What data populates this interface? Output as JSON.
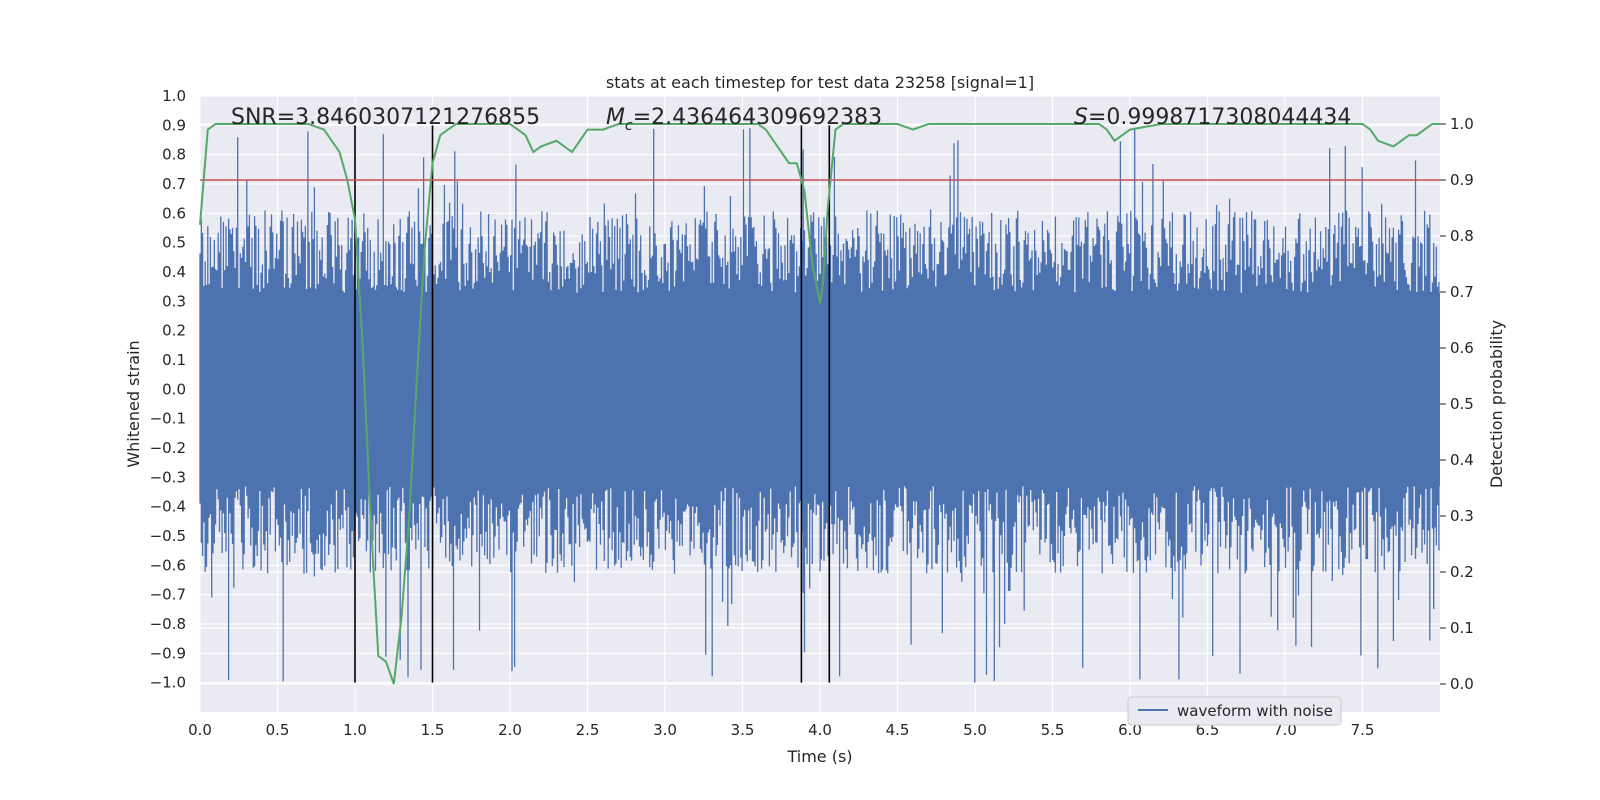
{
  "chart_data": {
    "type": "line",
    "title": "stats at each timestep for test data 23258 [signal=1]",
    "xlabel": "Time (s)",
    "ylabel": "Whitened strain",
    "y2label": "Detection probability",
    "xlim": [
      0.0,
      8.0
    ],
    "ylim": [
      -1.1,
      1.0
    ],
    "y2lim": [
      -0.05,
      1.05
    ],
    "x_ticks": [
      "0.0",
      "0.5",
      "1.0",
      "1.5",
      "2.0",
      "2.5",
      "3.0",
      "3.5",
      "4.0",
      "4.5",
      "5.0",
      "5.5",
      "6.0",
      "6.5",
      "7.0",
      "7.5"
    ],
    "y_ticks": [
      "1.0",
      "0.9",
      "0.8",
      "0.7",
      "0.6",
      "0.5",
      "0.4",
      "0.3",
      "0.2",
      "0.1",
      "0.0",
      "−0.1",
      "−0.2",
      "−0.3",
      "−0.4",
      "−0.5",
      "−0.6",
      "−0.7",
      "−0.8",
      "−0.9",
      "−1.0"
    ],
    "y2_ticks": [
      "1.0",
      "0.9",
      "0.8",
      "0.7",
      "0.6",
      "0.5",
      "0.4",
      "0.3",
      "0.2",
      "0.1",
      "0.0"
    ],
    "grid": true,
    "legend_position": "lower-right",
    "annotations": {
      "snr": "SNR=3.8460307121276855",
      "mc_symbol": "M",
      "mc_sub": "c",
      "mc_value": "=2.436464309692383",
      "s_symbol": "S",
      "s_value": "=0.9998717308044434"
    },
    "vertical_lines_x": [
      1.0,
      1.5,
      3.88,
      4.06
    ],
    "threshold_y2": 0.9,
    "series": [
      {
        "name": "waveform with noise",
        "color": "#4c72b0",
        "description_stats": {
          "typical_envelope": 0.33,
          "max_peak": 0.9,
          "min_peak": -1.0
        }
      },
      {
        "color": "#55a868",
        "axis": "y2",
        "x": [
          0.0,
          0.05,
          0.1,
          0.15,
          0.2,
          0.3,
          0.4,
          0.5,
          0.6,
          0.7,
          0.8,
          0.85,
          0.9,
          0.95,
          1.0,
          1.05,
          1.1,
          1.15,
          1.2,
          1.25,
          1.3,
          1.35,
          1.4,
          1.45,
          1.5,
          1.55,
          1.6,
          1.65,
          1.7,
          1.8,
          1.9,
          2.0,
          2.05,
          2.1,
          2.15,
          2.2,
          2.3,
          2.35,
          2.4,
          2.45,
          2.5,
          2.6,
          2.7,
          2.8,
          3.0,
          3.2,
          3.4,
          3.5,
          3.6,
          3.65,
          3.7,
          3.75,
          3.8,
          3.85,
          3.9,
          3.95,
          4.0,
          4.02,
          4.05,
          4.1,
          4.15,
          4.2,
          4.3,
          4.4,
          4.5,
          4.6,
          4.7,
          4.8,
          5.0,
          5.2,
          5.4,
          5.6,
          5.7,
          5.8,
          5.85,
          5.9,
          6.0,
          6.2,
          6.4,
          6.6,
          6.8,
          7.0,
          7.2,
          7.4,
          7.5,
          7.55,
          7.6,
          7.7,
          7.75,
          7.8,
          7.85,
          7.9,
          7.95,
          8.0
        ],
        "values": [
          0.82,
          0.99,
          1.0,
          1.0,
          1.0,
          1.0,
          1.0,
          1.0,
          1.0,
          1.0,
          0.99,
          0.97,
          0.95,
          0.9,
          0.83,
          0.6,
          0.3,
          0.05,
          0.04,
          0.0,
          0.12,
          0.3,
          0.55,
          0.78,
          0.93,
          0.98,
          0.99,
          1.0,
          1.0,
          1.0,
          1.0,
          1.0,
          0.99,
          0.98,
          0.95,
          0.96,
          0.97,
          0.96,
          0.95,
          0.97,
          0.99,
          0.99,
          1.0,
          1.0,
          1.0,
          1.0,
          1.0,
          1.0,
          1.0,
          0.99,
          0.97,
          0.95,
          0.93,
          0.93,
          0.88,
          0.75,
          0.68,
          0.72,
          0.85,
          0.99,
          1.0,
          1.0,
          1.0,
          1.0,
          1.0,
          0.99,
          1.0,
          1.0,
          1.0,
          1.0,
          1.0,
          1.0,
          1.0,
          1.0,
          0.99,
          0.97,
          0.99,
          1.0,
          1.0,
          1.0,
          1.0,
          1.0,
          1.0,
          1.0,
          1.0,
          0.99,
          0.97,
          0.96,
          0.97,
          0.98,
          0.98,
          0.99,
          1.0,
          1.0
        ]
      }
    ]
  }
}
